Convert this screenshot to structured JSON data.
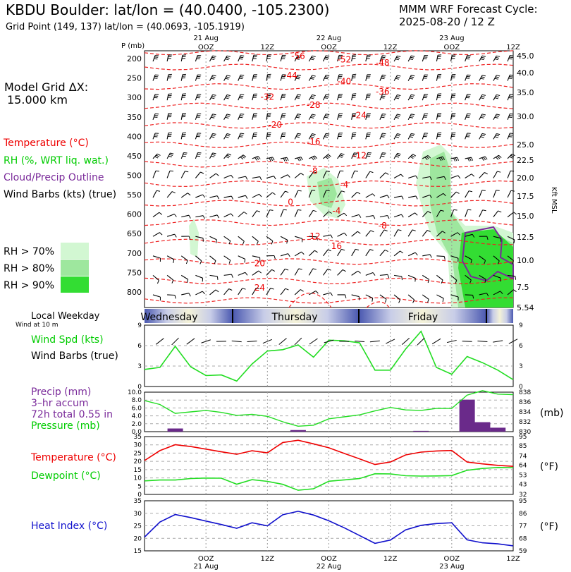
{
  "header": {
    "title": "KBDU Boulder:  lat/lon = (40.0400, -105.2300)",
    "subtitle": "Grid Point (149, 137) lat/lon = (40.0693, -105.1919)",
    "cycle_line1": "MMM WRF Forecast Cycle:",
    "cycle_line2": "2025-08-20 / 12  Z"
  },
  "left_panel": {
    "grid_label": "Model Grid ΔX:",
    "grid_value": "15.000 km",
    "legend_temperature": "Temperature (°C)",
    "legend_rh": "RH (%, WRT liq. wat.)",
    "legend_cloud": "Cloud/Precip Outline",
    "legend_wind": "Wind Barbs (kts) (true)",
    "rh_levels": [
      "RH > 70%",
      "RH > 80%",
      "RH > 90%"
    ],
    "rh_colors": [
      "#d2f7d2",
      "#9ee79e",
      "#33dd33"
    ],
    "local_weekday": "Local Weekday",
    "wind_at": "Wind at 10 m",
    "wind_spd": "Wind Spd (kts)",
    "wind_barbs": "Wind Barbs (true)",
    "precip_label": "Precip (mm)",
    "precip_accum": "3–hr accum",
    "precip_total": "72h total 0.55 in",
    "pressure_label": "Pressure (mb)",
    "temp_label": "Temperature (°C)",
    "dewpoint_label": "Dewpoint (°C)",
    "heat_label": "Heat Index (°C)",
    "unit_mb": "(mb)",
    "unit_f1": "(°F)",
    "unit_f2": "(°F)",
    "kft_label": "Kft MSL"
  },
  "axis": {
    "p_label": "P (mb)",
    "time_top": [
      {
        "date": "21 Aug",
        "label": "OOZ"
      },
      {
        "date": "",
        "label": "12Z"
      },
      {
        "date": "22 Aug",
        "label": "OOZ"
      },
      {
        "date": "",
        "label": "12Z"
      },
      {
        "date": "23 Aug",
        "label": "OOZ"
      },
      {
        "date": "",
        "label": "12Z"
      }
    ],
    "time_bottom": [
      {
        "label": "OOZ",
        "date": "21 Aug"
      },
      {
        "label": "12Z",
        "date": ""
      },
      {
        "label": "OOZ",
        "date": "22 Aug"
      },
      {
        "label": "12Z",
        "date": ""
      },
      {
        "label": "OOZ",
        "date": "23 Aug"
      },
      {
        "label": "12Z",
        "date": ""
      }
    ],
    "weekdays": [
      "Wednesday",
      "Thursday",
      "Friday"
    ]
  },
  "chart_data": [
    {
      "type": "heatmap",
      "name": "time-height cross section",
      "pressure_levels": [
        200,
        250,
        300,
        350,
        400,
        450,
        500,
        550,
        600,
        650,
        700,
        750,
        800
      ],
      "height_kft": [
        "45.0",
        "40.0",
        "35.0",
        "30.0",
        "25.0",
        "22.5",
        "20.0",
        "17.5",
        "15.0",
        "12.5",
        "10.0",
        "7.5",
        "5.54"
      ],
      "temperature_contours": [
        {
          "value": "-56",
          "t": 10,
          "p": 192
        },
        {
          "value": "-52",
          "t": 13,
          "p": 201
        },
        {
          "value": "-48",
          "t": 15.5,
          "p": 209
        },
        {
          "value": "-44",
          "t": 9.5,
          "p": 242
        },
        {
          "value": "-40",
          "t": 13,
          "p": 257
        },
        {
          "value": "-36",
          "t": 15.5,
          "p": 283
        },
        {
          "value": "-32",
          "t": 8,
          "p": 297
        },
        {
          "value": "-28",
          "t": 11,
          "p": 318
        },
        {
          "value": "-24",
          "t": 14,
          "p": 344
        },
        {
          "value": "-20",
          "t": 8.5,
          "p": 369
        },
        {
          "value": "-16",
          "t": 11,
          "p": 412
        },
        {
          "value": "-12",
          "t": 14,
          "p": 447
        },
        {
          "value": "-8",
          "t": 11,
          "p": 487
        },
        {
          "value": "-4",
          "t": 13,
          "p": 523
        },
        {
          "value": "0",
          "t": 9.5,
          "p": 567
        },
        {
          "value": "-4",
          "t": 12.5,
          "p": 590
        },
        {
          "value": "-8",
          "t": 15.5,
          "p": 628
        },
        {
          "value": "-12",
          "t": 11,
          "p": 655
        },
        {
          "value": "16",
          "t": 12.5,
          "p": 680
        },
        {
          "value": "20",
          "t": 7.5,
          "p": 725
        },
        {
          "value": "24",
          "t": 7.5,
          "p": 787
        }
      ]
    },
    {
      "type": "line",
      "name": "wind speed",
      "ylim": [
        0,
        9
      ],
      "yticks": [
        0,
        3,
        6,
        9
      ],
      "x_hours": [
        0,
        3,
        6,
        9,
        12,
        15,
        18,
        21,
        24,
        27,
        30,
        33,
        36,
        39,
        42,
        45,
        48,
        51,
        54,
        57,
        60,
        63,
        66,
        69,
        72
      ],
      "series": [
        {
          "values": [
            2.5,
            2.8,
            5.9,
            2.9,
            1.6,
            1.7,
            0.8,
            3.3,
            5.2,
            5.4,
            6.1,
            4.3,
            6.8,
            6.7,
            6.4,
            2.4,
            2.4,
            5.5,
            8.1,
            2.8,
            1.8,
            4.4,
            3.5,
            2.4,
            1.0
          ],
          "color": "#22dd22"
        }
      ]
    },
    {
      "type": "bar",
      "name": "precip and pressure",
      "ylim": [
        0,
        10
      ],
      "yticks": [
        0.0,
        2.0,
        4.0,
        6.0,
        8.0,
        10.0
      ],
      "y2ticks": [
        830,
        832,
        834,
        836,
        838
      ],
      "precip_mm": [
        0,
        0,
        0.8,
        0,
        0,
        0,
        0,
        0,
        0,
        0,
        0.4,
        0,
        0,
        0,
        0,
        0,
        0,
        0,
        0.2,
        0,
        0,
        8.1,
        2.4,
        1.0,
        0
      ],
      "pressure_mb": [
        836.3,
        835.5,
        833.7,
        834.0,
        834.3,
        833.9,
        833.3,
        833.5,
        833.1,
        832.0,
        831.1,
        831.3,
        832.6,
        833.0,
        833.4,
        834.2,
        834.9,
        834.4,
        834.3,
        834.7,
        834.7,
        837.4,
        838.3,
        837.6,
        837.5
      ],
      "series": [
        {
          "values": [
            836.3,
            835.5,
            833.7,
            834.0,
            834.3,
            833.9,
            833.3,
            833.5,
            833.1,
            832.0,
            831.1,
            831.3,
            832.6,
            833.0,
            833.4,
            834.2,
            834.9,
            834.4,
            834.3,
            834.7,
            834.7,
            837.4,
            838.3,
            837.6,
            837.5
          ],
          "color": "#22dd22"
        }
      ]
    },
    {
      "type": "line",
      "name": "temperature and dewpoint",
      "ylim": [
        0,
        35
      ],
      "yticks": [
        0,
        5,
        10,
        15,
        20,
        25,
        30,
        35
      ],
      "y2ticks": [
        "32",
        "43",
        "53",
        "64",
        "74",
        "85",
        "95"
      ],
      "series": [
        {
          "values": [
            20.5,
            26.5,
            30.1,
            29.0,
            27.4,
            25.8,
            24.3,
            26.4,
            25.2,
            31.4,
            32.8,
            30.6,
            28.2,
            24.8,
            21.5,
            18.1,
            19.6,
            23.9,
            25.6,
            26.3,
            26.6,
            19.6,
            18.5,
            17.6,
            17.0
          ],
          "color": "#ee0000"
        },
        {
          "values": [
            8.2,
            8.7,
            8.7,
            9.6,
            9.9,
            9.8,
            6.2,
            8.9,
            7.9,
            6.1,
            2.5,
            3.4,
            8.0,
            8.8,
            9.6,
            12.5,
            12.4,
            11.3,
            11.1,
            11.2,
            11.4,
            14.6,
            15.7,
            16.3,
            16.2
          ],
          "color": "#22dd22"
        }
      ]
    },
    {
      "type": "line",
      "name": "heat index",
      "ylim": [
        15,
        35
      ],
      "yticks": [
        15,
        20,
        25,
        30,
        35
      ],
      "y2ticks": [
        "59",
        "68",
        "77",
        "86",
        "95"
      ],
      "series": [
        {
          "values": [
            20.5,
            26.5,
            29.5,
            28.3,
            26.9,
            25.5,
            24.0,
            26.2,
            25.0,
            29.4,
            30.8,
            29.3,
            27.0,
            24.2,
            21.1,
            18.0,
            19.3,
            23.4,
            25.2,
            25.9,
            26.2,
            19.4,
            18.2,
            17.8,
            17.0
          ],
          "color": "#1010cc"
        }
      ]
    }
  ]
}
